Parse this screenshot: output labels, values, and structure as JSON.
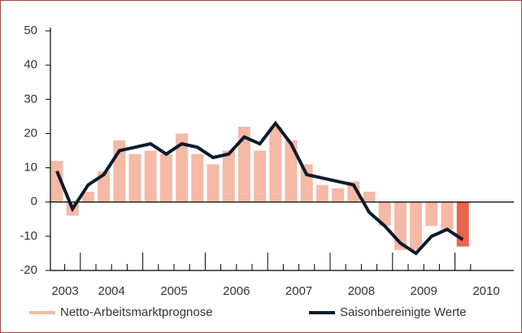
{
  "chart_data": {
    "type": "bar_line",
    "categories": [
      "2003",
      null,
      "2004",
      null,
      null,
      null,
      "2005",
      null,
      null,
      null,
      "2006",
      null,
      null,
      null,
      "2007",
      null,
      null,
      null,
      "2008",
      null,
      null,
      null,
      "2009",
      null,
      null,
      null,
      "2010"
    ],
    "series": [
      {
        "name": "Netto-Arbeitsmarktprognose",
        "type": "bar",
        "color": "#f5b9a6",
        "colors": [
          "#f5b9a6",
          "#f5b9a6",
          "#f5b9a6",
          "#f5b9a6",
          "#f5b9a6",
          "#f5b9a6",
          "#f5b9a6",
          "#f5b9a6",
          "#f5b9a6",
          "#f5b9a6",
          "#f5b9a6",
          "#f5b9a6",
          "#f5b9a6",
          "#f5b9a6",
          "#f5b9a6",
          "#f5b9a6",
          "#f5b9a6",
          "#f5b9a6",
          "#f5b9a6",
          "#f5b9a6",
          "#f5b9a6",
          "#f5b9a6",
          "#f5b9a6",
          "#f5b9a6",
          "#f5b9a6",
          "#f5b9a6",
          "#e8644f"
        ],
        "values": [
          12,
          -4,
          3,
          9,
          18,
          14,
          15,
          14,
          20,
          14,
          11,
          15,
          22,
          15,
          22,
          18,
          11,
          5,
          4,
          6,
          3,
          -7,
          -14,
          -14,
          -7,
          -8,
          -13
        ]
      },
      {
        "name": "Saisonbereinigte Werte",
        "type": "line",
        "color": "#0d1b2a",
        "values": [
          9,
          -2,
          5,
          8,
          15,
          16,
          17,
          14,
          17,
          16,
          13,
          14,
          19,
          17,
          23,
          17,
          8,
          7,
          6,
          5,
          -3,
          -7,
          -12,
          -15,
          -10,
          -8,
          -11
        ]
      }
    ],
    "ylim": [
      -20,
      50
    ],
    "yticks": [
      -20,
      -10,
      0,
      10,
      20,
      30,
      40,
      50
    ]
  }
}
